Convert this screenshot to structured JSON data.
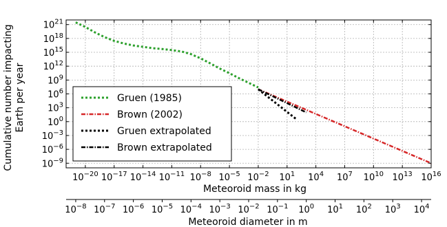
{
  "chart_data": {
    "type": "line",
    "xscale": "log",
    "yscale": "log",
    "xlim": [
      1e-22,
      1e+16
    ],
    "ylim": [
      1e-10,
      1e+22
    ],
    "grid": true,
    "xlabel": "Meteoroid mass in kg",
    "ylabel_lines": [
      "Cumulative number impacting",
      "Earth per year"
    ],
    "secondary_xaxis": {
      "label": "Meteoroid diameter in m",
      "ticks": [
        {
          "exp": -8,
          "mass": 1e-21
        },
        {
          "exp": -7,
          "mass": 1e-18
        },
        {
          "exp": -6,
          "mass": 1e-15
        },
        {
          "exp": -5,
          "mass": 1e-12
        },
        {
          "exp": -4,
          "mass": 1e-09
        },
        {
          "exp": -3,
          "mass": 1e-06
        },
        {
          "exp": -2,
          "mass": 0.001
        },
        {
          "exp": -1,
          "mass": 1
        },
        {
          "exp": 0,
          "mass": 1000.0
        },
        {
          "exp": 1,
          "mass": 1000000.0
        },
        {
          "exp": 2,
          "mass": 1000000000.0
        },
        {
          "exp": 3,
          "mass": 1000000000000.0
        },
        {
          "exp": 4,
          "mass": 1000000000000000.0
        }
      ]
    },
    "xticks": [
      {
        "exp": -20,
        "value": 1e-20
      },
      {
        "exp": -17,
        "value": 1e-17
      },
      {
        "exp": -14,
        "value": 1e-14
      },
      {
        "exp": -11,
        "value": 1e-11
      },
      {
        "exp": -8,
        "value": 1e-08
      },
      {
        "exp": -5,
        "value": 1e-05
      },
      {
        "exp": -2,
        "value": 0.01
      },
      {
        "exp": 1,
        "value": 10
      },
      {
        "exp": 4,
        "value": 10000.0
      },
      {
        "exp": 7,
        "value": 10000000.0
      },
      {
        "exp": 10,
        "value": 10000000000.0
      },
      {
        "exp": 13,
        "value": 10000000000000.0
      },
      {
        "exp": 16,
        "value": 1e+16
      }
    ],
    "yticks": [
      {
        "exp": 21,
        "value": 1e+21
      },
      {
        "exp": 18,
        "value": 1e+18
      },
      {
        "exp": 15,
        "value": 1000000000000000.0
      },
      {
        "exp": 12,
        "value": 1000000000000.0
      },
      {
        "exp": 9,
        "value": 1000000000.0
      },
      {
        "exp": 6,
        "value": 1000000.0
      },
      {
        "exp": 3,
        "value": 1000.0
      },
      {
        "exp": 0,
        "value": 1
      },
      {
        "exp": -3,
        "value": 0.001
      },
      {
        "exp": -6,
        "value": 1e-06
      },
      {
        "exp": -9,
        "value": 1e-09
      }
    ],
    "legend_position": "lower-left",
    "series": [
      {
        "name": "Gruen (1985)",
        "color": "#2ca02c",
        "dash": "dotted-thick",
        "points": [
          [
            1e-21,
            3e+21
          ],
          [
            1e-20,
            3e+20
          ],
          [
            1e-19,
            2e+19
          ],
          [
            1e-18,
            2e+18
          ],
          [
            1e-17,
            3e+17
          ],
          [
            1e-16,
            8e+16
          ],
          [
            1e-15,
            3e+16
          ],
          [
            1e-14,
            1.5e+16
          ],
          [
            1e-13,
            8000000000000000.0
          ],
          [
            1e-12,
            5000000000000000.0
          ],
          [
            1e-11,
            3000000000000000.0
          ],
          [
            1e-10,
            1500000000000000.0
          ],
          [
            1e-09,
            400000000000000.0
          ],
          [
            1e-08,
            50000000000000.0
          ],
          [
            1e-07,
            4000000000000.0
          ],
          [
            1e-06,
            300000000000.0
          ],
          [
            1e-05,
            30000000000.0
          ],
          [
            0.0001,
            2500000000.0
          ],
          [
            0.001,
            250000000.0
          ],
          [
            0.01,
            25000000.0
          ]
        ]
      },
      {
        "name": "Brown (2002)",
        "color": "#d62728",
        "dash": "dash-dot",
        "points": [
          [
            0.01,
            10000000.0
          ],
          [
            1e+16,
            1e-09
          ]
        ]
      },
      {
        "name": "Gruen extrapolated",
        "color": "#000000",
        "dash": "dotted-thick",
        "points": [
          [
            0.01,
            10000000.0
          ],
          [
            100.0,
            3.0
          ]
        ]
      },
      {
        "name": "Brown extrapolated",
        "color": "#000000",
        "dash": "dash-dot",
        "points": [
          [
            0.01,
            10000000.0
          ],
          [
            1000.0,
            100.0
          ]
        ]
      }
    ]
  }
}
